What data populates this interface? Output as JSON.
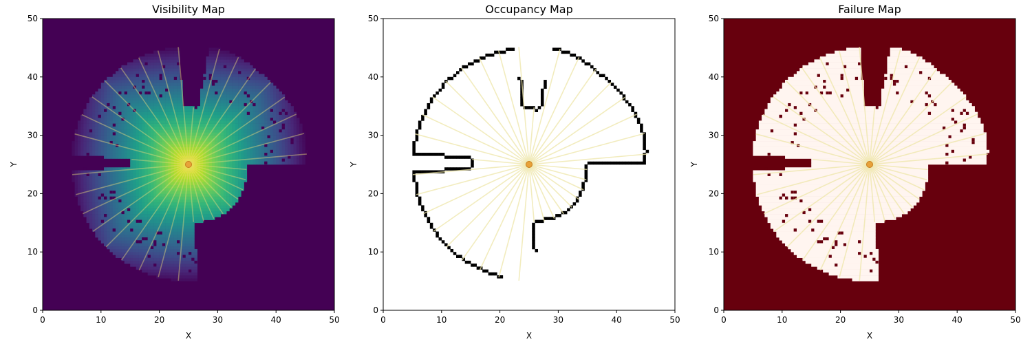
{
  "chart_data": [
    {
      "type": "heatmap",
      "title": "Visibility Map",
      "xlabel": "X",
      "ylabel": "Y",
      "xlim": [
        0,
        50
      ],
      "ylim": [
        0,
        50
      ],
      "xticks": [
        "0",
        "10",
        "20",
        "30",
        "40",
        "50"
      ],
      "yticks": [
        "0",
        "10",
        "20",
        "30",
        "40",
        "50"
      ],
      "colormap": "viridis",
      "background_color": "#440154",
      "robot": [
        25,
        25
      ],
      "robot_color": "#e8a23a",
      "ray_color": "#e6d97a"
    },
    {
      "type": "heatmap",
      "title": "Occupancy Map",
      "xlabel": "X",
      "ylabel": "Y",
      "xlim": [
        0,
        50
      ],
      "ylim": [
        0,
        50
      ],
      "xticks": [
        "0",
        "10",
        "20",
        "30",
        "40",
        "50"
      ],
      "yticks": [
        "0",
        "10",
        "20",
        "30",
        "40",
        "50"
      ],
      "colormap": "binary",
      "background_color": "#ffffff",
      "wall_color": "#000000",
      "robot": [
        25,
        25
      ],
      "robot_color": "#e8a23a",
      "ray_color": "#ede5a8"
    },
    {
      "type": "heatmap",
      "title": "Failure Map",
      "xlabel": "X",
      "ylabel": "Y",
      "xlim": [
        0,
        50
      ],
      "ylim": [
        0,
        50
      ],
      "xticks": [
        "0",
        "10",
        "20",
        "30",
        "40",
        "50"
      ],
      "yticks": [
        "0",
        "10",
        "20",
        "30",
        "40",
        "50"
      ],
      "colormap": "Reds",
      "background_color": "#67000d",
      "free_color": "#fff5f0",
      "robot": [
        25,
        25
      ],
      "robot_color": "#e8a23a",
      "ray_color": "#ede5a8"
    }
  ]
}
